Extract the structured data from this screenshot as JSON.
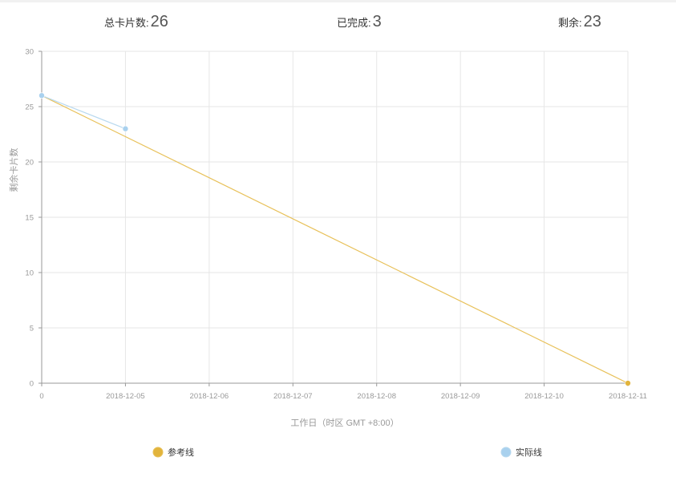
{
  "summary": {
    "total_label": "总卡片数:",
    "total_value": "26",
    "done_label": "已完成:",
    "done_value": "3",
    "remaining_label": "剩余:",
    "remaining_value": "23"
  },
  "chart_data": {
    "type": "line",
    "x_categories": [
      "0",
      "2018-12-05",
      "2018-12-06",
      "2018-12-07",
      "2018-12-08",
      "2018-12-09",
      "2018-12-10",
      "2018-12-11"
    ],
    "xlabel": "工作日（时区 GMT +8:00）",
    "ylabel": "剩余卡片数",
    "ylim": [
      0,
      30
    ],
    "yticks": [
      0,
      5,
      10,
      15,
      20,
      25,
      30
    ],
    "grid": true,
    "legend_position": "bottom",
    "series": [
      {
        "name": "参考线",
        "color": "#e8c15a",
        "marker_color": "#e2b43c",
        "points": [
          [
            0,
            26
          ],
          [
            7,
            0
          ]
        ],
        "markers": [
          1
        ]
      },
      {
        "name": "实际线",
        "color": "#b9d9ef",
        "marker_color": "#a9d1ee",
        "points": [
          [
            0,
            26
          ],
          [
            1,
            23
          ]
        ],
        "markers": [
          0,
          1
        ]
      }
    ]
  }
}
